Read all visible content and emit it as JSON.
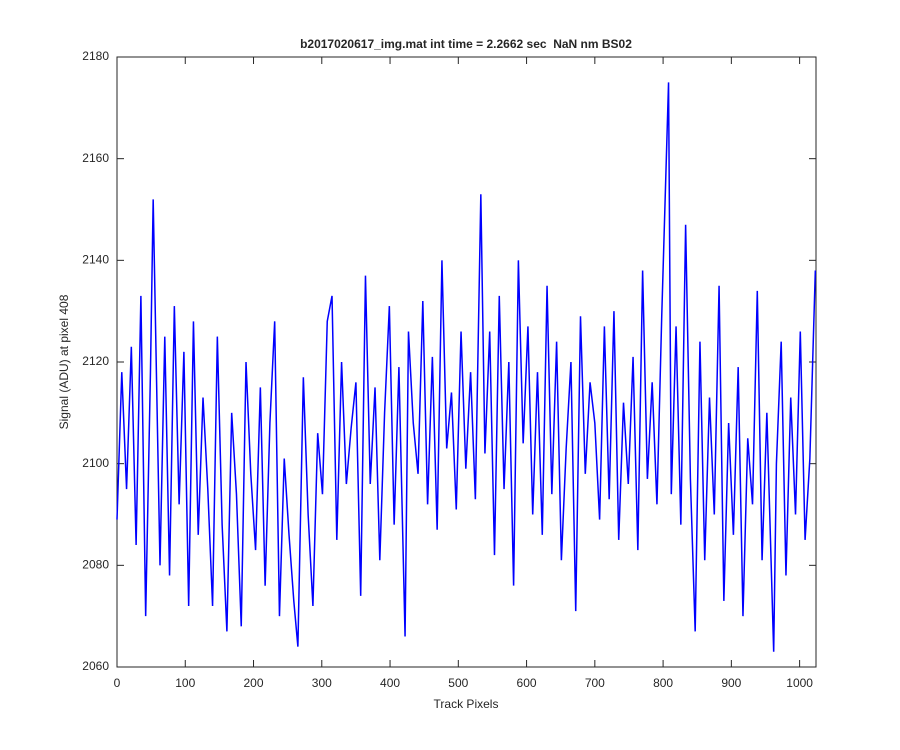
{
  "chart_data": {
    "type": "line",
    "title": "b2017020617_img.mat int time = 2.2662 sec  NaN nm BS02",
    "x_label": "Track Pixels",
    "y_label": "Signal (ADU) at pixel 408",
    "xlim": [
      0,
      1024
    ],
    "ylim": [
      2060,
      2180
    ],
    "xticks": [
      0,
      100,
      200,
      300,
      400,
      500,
      600,
      700,
      800,
      900,
      1000
    ],
    "yticks": [
      2060,
      2080,
      2100,
      2120,
      2140,
      2160,
      2180
    ],
    "series": [
      {
        "color": "#0000ff",
        "x": [
          0,
          7,
          14,
          21,
          28,
          35,
          42,
          49,
          53,
          63,
          70,
          77,
          84,
          91,
          98,
          105,
          112,
          119,
          126,
          133,
          140,
          147,
          154,
          161,
          168,
          175,
          182,
          189,
          196,
          203,
          210,
          217,
          224,
          231,
          238,
          245,
          252,
          259,
          265,
          273,
          280,
          287,
          294,
          301,
          308,
          315,
          322,
          329,
          336,
          343,
          350,
          357,
          364,
          371,
          378,
          385,
          392,
          399,
          406,
          413,
          422,
          427,
          434,
          441,
          448,
          455,
          462,
          469,
          476,
          483,
          490,
          497,
          504,
          511,
          518,
          525,
          533,
          539,
          546,
          553,
          560,
          567,
          574,
          581,
          588,
          595,
          602,
          609,
          616,
          623,
          630,
          637,
          644,
          651,
          658,
          665,
          672,
          679,
          686,
          693,
          700,
          707,
          714,
          721,
          728,
          735,
          742,
          749,
          756,
          763,
          770,
          777,
          784,
          791,
          798,
          808,
          812,
          819,
          826,
          833,
          840,
          847,
          854,
          861,
          868,
          875,
          882,
          889,
          896,
          903,
          910,
          917,
          924,
          931,
          938,
          945,
          952,
          962,
          966,
          973,
          980,
          987,
          994,
          1001,
          1008,
          1015,
          1023
        ],
        "values": [
          2089,
          2118,
          2095,
          2123,
          2084,
          2133,
          2070,
          2118,
          2152,
          2080,
          2125,
          2078,
          2131,
          2092,
          2122,
          2072,
          2128,
          2086,
          2113,
          2095,
          2072,
          2125,
          2088,
          2067,
          2110,
          2094,
          2068,
          2120,
          2098,
          2083,
          2115,
          2076,
          2108,
          2128,
          2070,
          2101,
          2086,
          2073,
          2064,
          2117,
          2090,
          2072,
          2106,
          2094,
          2128,
          2133,
          2085,
          2120,
          2096,
          2107,
          2116,
          2074,
          2137,
          2096,
          2115,
          2081,
          2110,
          2131,
          2088,
          2119,
          2066,
          2126,
          2108,
          2098,
          2132,
          2092,
          2121,
          2087,
          2140,
          2103,
          2114,
          2091,
          2126,
          2099,
          2118,
          2093,
          2153,
          2102,
          2126,
          2082,
          2133,
          2095,
          2120,
          2076,
          2140,
          2104,
          2127,
          2090,
          2118,
          2086,
          2135,
          2094,
          2124,
          2081,
          2103,
          2120,
          2071,
          2129,
          2098,
          2116,
          2108,
          2089,
          2127,
          2093,
          2130,
          2085,
          2112,
          2096,
          2121,
          2083,
          2138,
          2097,
          2116,
          2092,
          2129,
          2175,
          2094,
          2127,
          2088,
          2147,
          2097,
          2067,
          2124,
          2081,
          2113,
          2090,
          2135,
          2073,
          2108,
          2086,
          2119,
          2070,
          2105,
          2092,
          2134,
          2081,
          2110,
          2063,
          2100,
          2124,
          2078,
          2113,
          2090,
          2126,
          2085,
          2101,
          2138
        ]
      }
    ]
  }
}
